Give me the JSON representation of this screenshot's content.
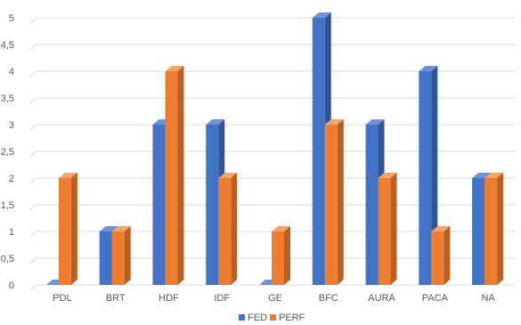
{
  "chart_data": {
    "type": "bar",
    "categories": [
      "PDL",
      "BRT",
      "HDF",
      "IDF",
      "GE",
      "BFC",
      "AURA",
      "PACA",
      "NA"
    ],
    "series": [
      {
        "name": "FED",
        "values": [
          0,
          1,
          3,
          3,
          0,
          5,
          3,
          4,
          2
        ]
      },
      {
        "name": "PERF",
        "values": [
          2,
          1,
          4,
          2,
          1,
          3,
          2,
          1,
          2
        ]
      }
    ],
    "y_ticks": [
      "0",
      "0,5",
      "1",
      "1,5",
      "2",
      "2,5",
      "3",
      "3,5",
      "4",
      "4,5",
      "5"
    ],
    "ylim": [
      0,
      5
    ],
    "grid": true,
    "legend_position": "bottom",
    "colors": {
      "FED": "#4472C4",
      "FED_side": "#2F5597",
      "FED_top": "#6F93D6",
      "PERF": "#ED7D31",
      "PERF_side": "#B85F22",
      "PERF_top": "#F3A46E",
      "grid": "#D9D9D9",
      "text": "#595959"
    }
  }
}
